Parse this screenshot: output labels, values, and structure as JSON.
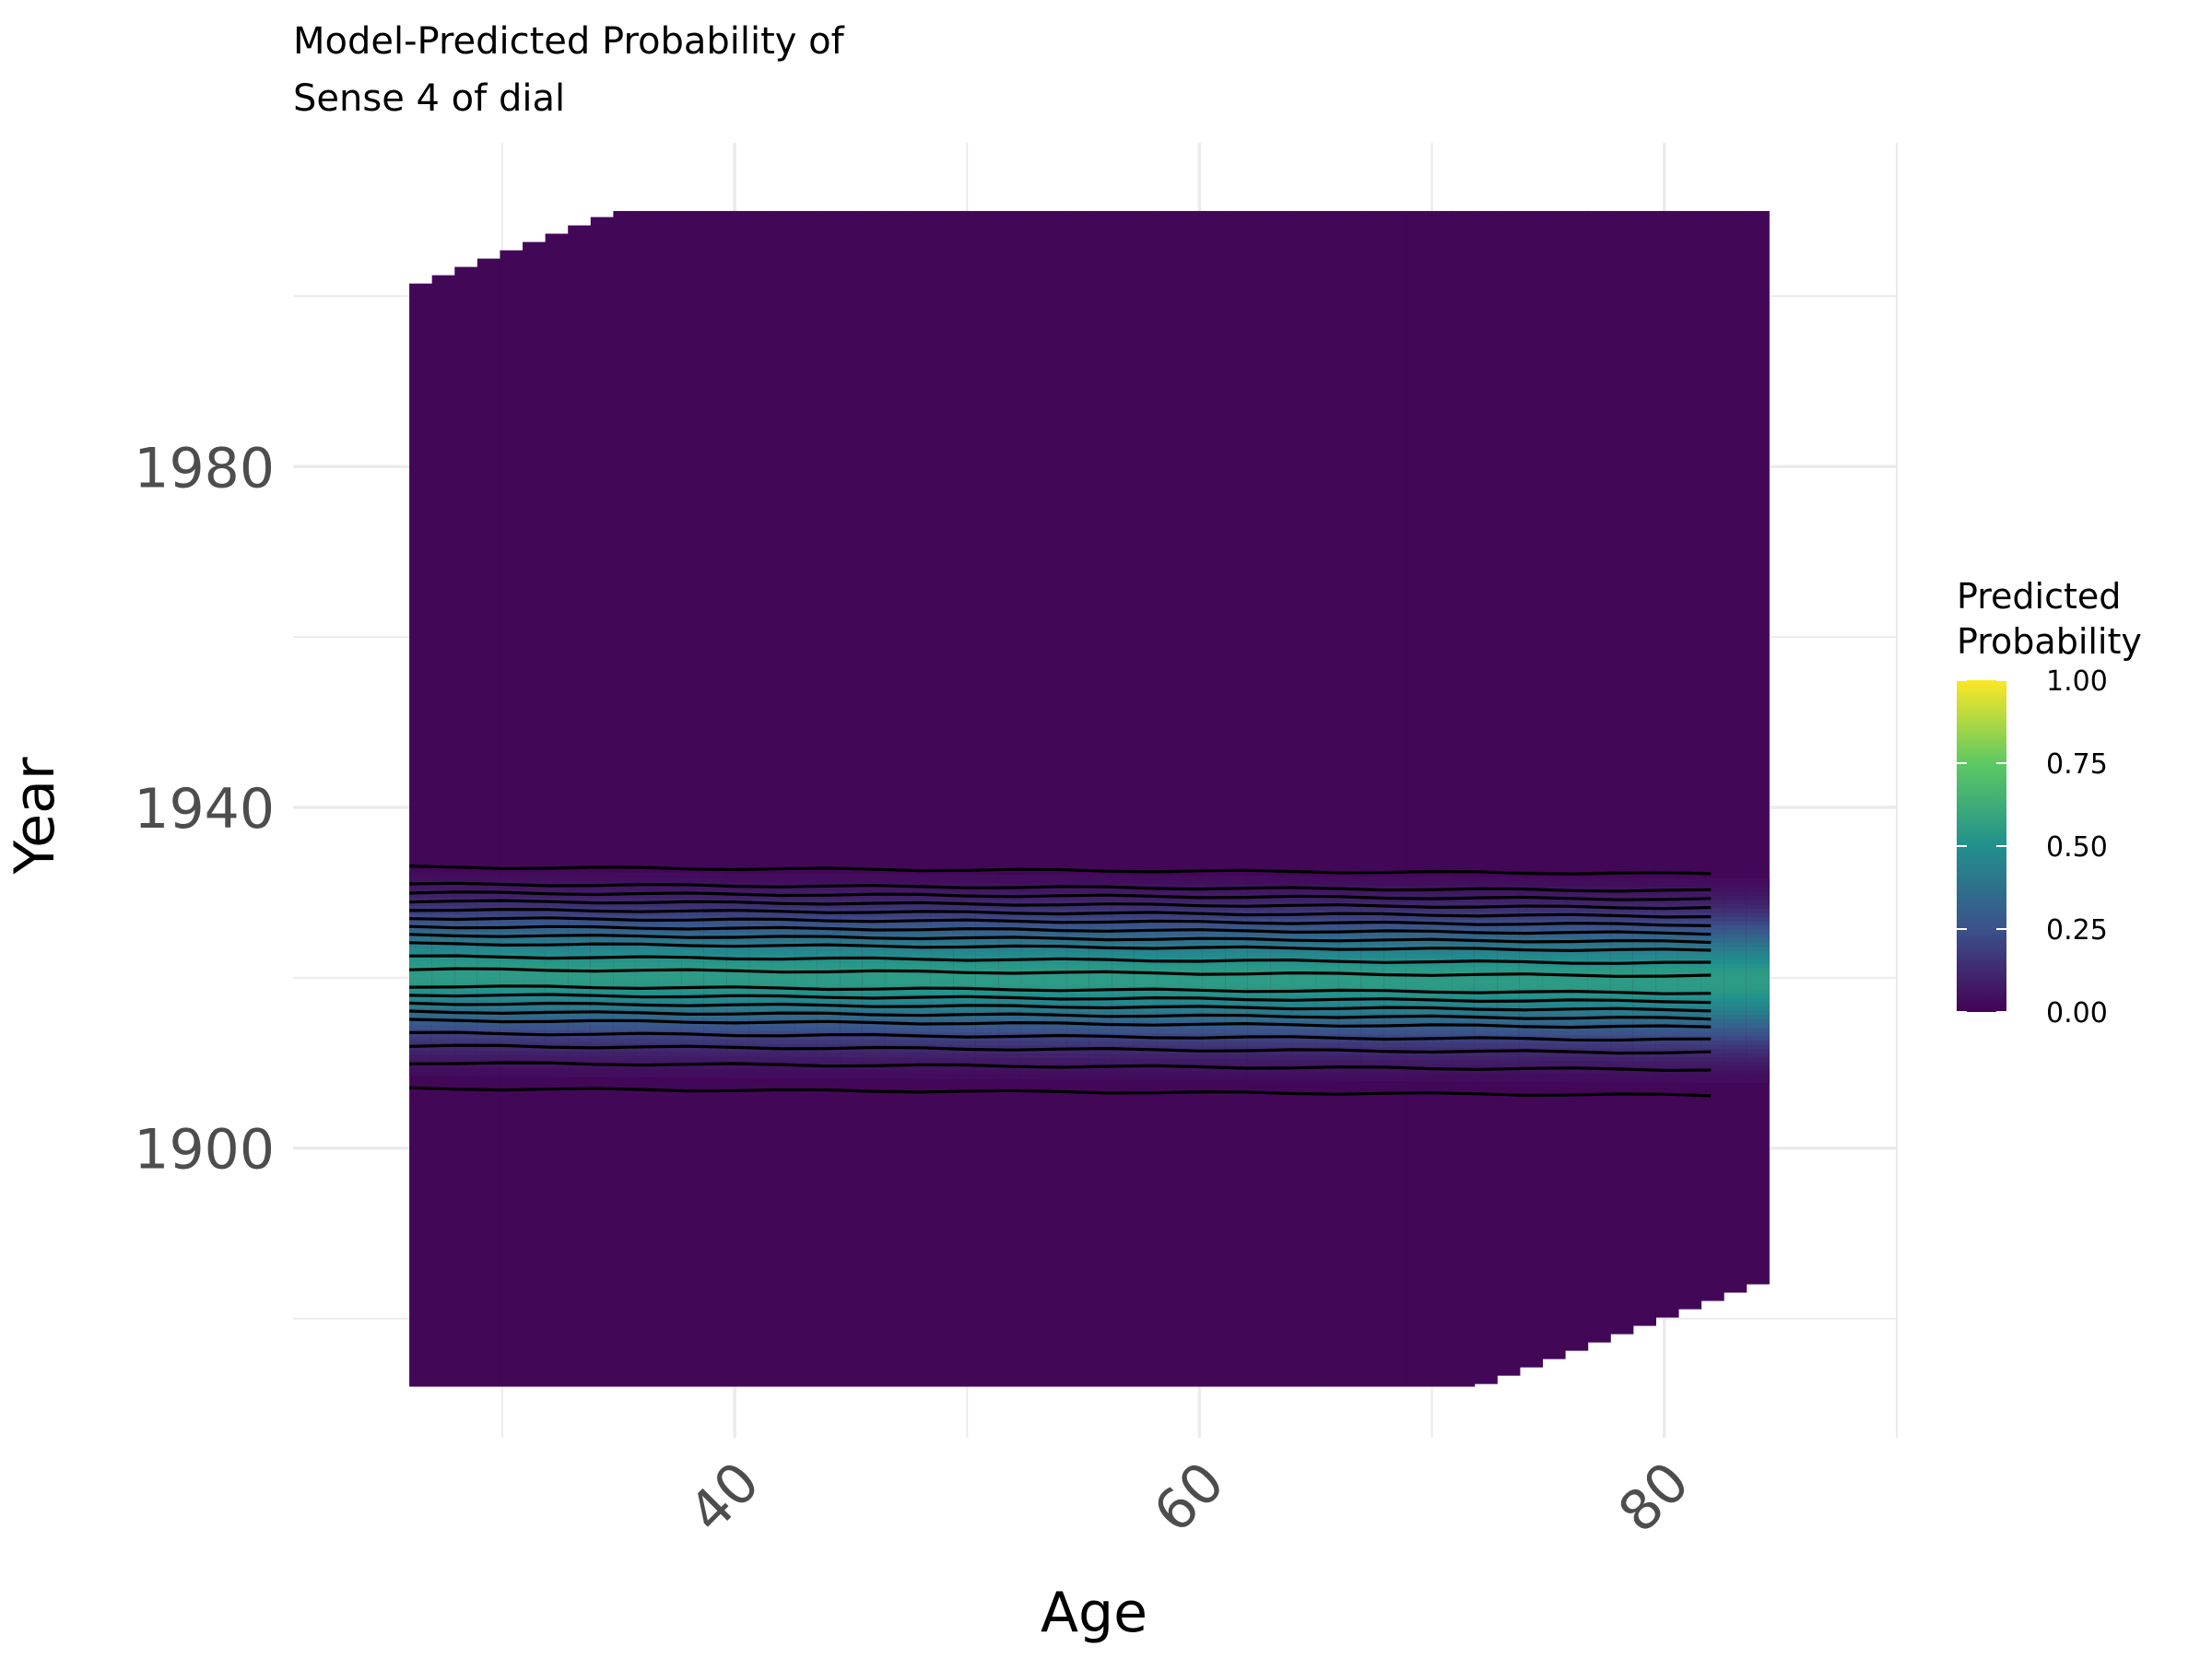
{
  "chart_data": {
    "type": "heatmap",
    "title": [
      "Model-Predicted Probability of",
      "Sense 4 of dial"
    ],
    "xlabel": "Age",
    "ylabel": "Year",
    "xlim": [
      21,
      90
    ],
    "ylim": [
      1866,
      2018
    ],
    "x_ticks": [
      40,
      60,
      80
    ],
    "x_tick_labels": [
      "40",
      "60",
      "80"
    ],
    "y_ticks": [
      1900,
      1940,
      1980
    ],
    "y_tick_labels": [
      "1900",
      "1940",
      "1980"
    ],
    "grid": true,
    "x_range_tiles": [
      26,
      84.5
    ],
    "y_range_tiles": [
      1872,
      2010
    ],
    "peak_year": 1920.5,
    "peak_probability": 0.55,
    "contour_years": [
      1907,
      1910,
      1912,
      1913.5,
      1915,
      1916,
      1917,
      1918,
      1919,
      1921,
      1922.5,
      1924,
      1925,
      1926,
      1927,
      1928,
      1929,
      1930,
      1931,
      1933
    ],
    "contour_slope_per_age_year": -0.014,
    "colormap": "viridis",
    "colors": [
      "#440154",
      "#3b528b",
      "#21908d",
      "#5dc962",
      "#fde725"
    ],
    "legend": {
      "title": [
        "Predicted",
        "Probability"
      ],
      "ticks": [
        0.0,
        0.25,
        0.5,
        0.75,
        1.0
      ],
      "tick_labels": [
        "0.00",
        "0.25",
        "0.50",
        "0.75",
        "1.00"
      ],
      "placement": "right"
    }
  }
}
